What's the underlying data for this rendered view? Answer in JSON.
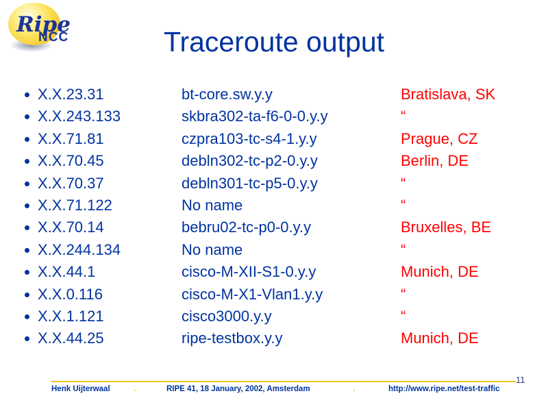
{
  "logo": {
    "primary": "Ripe",
    "secondary": "NCC"
  },
  "title": "Traceroute output",
  "colors": {
    "blue": "#0033A0",
    "red": "#FF0000",
    "gold": "#F2C114"
  },
  "rows": [
    {
      "ip": "X.X.23.31",
      "host": "bt-core.sw.y.y",
      "city": "Bratislava, SK"
    },
    {
      "ip": "X.X.243.133",
      "host": "skbra302-ta-f6-0-0.y.y",
      "city": "“"
    },
    {
      "ip": "X.X.71.81",
      "host": "czpra103-tc-s4-1.y.y",
      "city": "Prague, CZ"
    },
    {
      "ip": "X.X.70.45",
      "host": "debln302-tc-p2-0.y.y",
      "city": "Berlin, DE"
    },
    {
      "ip": "X.X.70.37",
      "host": "debln301-tc-p5-0.y.y",
      "city": "“"
    },
    {
      "ip": "X.X.71.122",
      "host": "No name",
      "city": "“"
    },
    {
      "ip": "X.X.70.14",
      "host": "bebru02-tc-p0-0.y.y",
      "city": "Bruxelles, BE"
    },
    {
      "ip": "X.X.244.134",
      "host": "No name",
      "city": "“"
    },
    {
      "ip": "X.X.44.1",
      "host": "cisco-M-XII-S1-0.y.y",
      "city": "Munich, DE"
    },
    {
      "ip": "X.X.0.116",
      "host": "cisco-M-X1-Vlan1.y.y",
      "city": "“"
    },
    {
      "ip": "X.X.1.121",
      "host": "cisco3000.y.y",
      "city": "“"
    },
    {
      "ip": "X.X.44.25",
      "host": "ripe-testbox.y.y",
      "city": "Munich, DE"
    }
  ],
  "footer": {
    "author": "Henk Uijterwaal",
    "separator": ".",
    "event": "RIPE 41, 18 January, 2002, Amsterdam",
    "url": "http://www.ripe.net/test-traffic",
    "page_number": "11"
  }
}
